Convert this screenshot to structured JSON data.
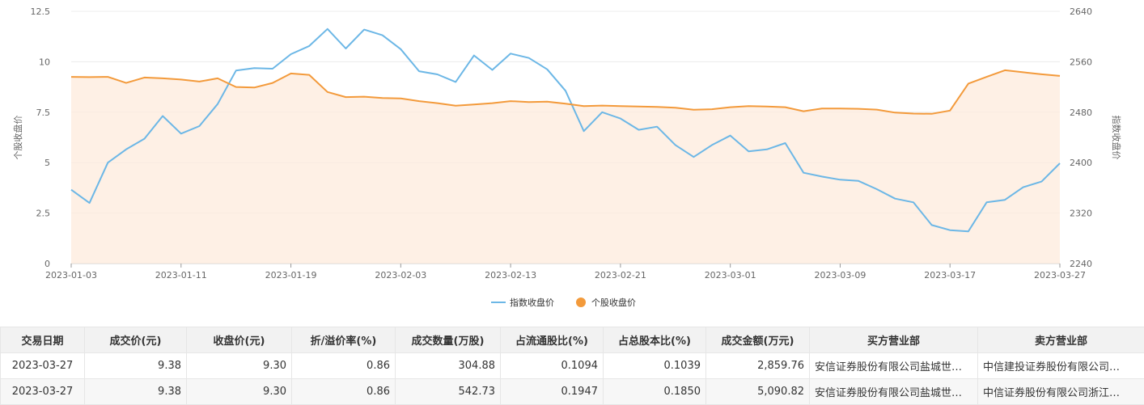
{
  "chart_data": {
    "type": "line",
    "x": [
      "2023-01-03",
      "2023-01-04",
      "2023-01-05",
      "2023-01-06",
      "2023-01-09",
      "2023-01-10",
      "2023-01-11",
      "2023-01-12",
      "2023-01-13",
      "2023-01-16",
      "2023-01-17",
      "2023-01-18",
      "2023-01-19",
      "2023-01-20",
      "2023-01-30",
      "2023-01-31",
      "2023-02-01",
      "2023-02-02",
      "2023-02-03",
      "2023-02-06",
      "2023-02-07",
      "2023-02-08",
      "2023-02-09",
      "2023-02-10",
      "2023-02-13",
      "2023-02-14",
      "2023-02-15",
      "2023-02-16",
      "2023-02-17",
      "2023-02-20",
      "2023-02-21",
      "2023-02-22",
      "2023-02-23",
      "2023-02-24",
      "2023-02-27",
      "2023-02-28",
      "2023-03-01",
      "2023-03-02",
      "2023-03-03",
      "2023-03-06",
      "2023-03-07",
      "2023-03-08",
      "2023-03-09",
      "2023-03-10",
      "2023-03-13",
      "2023-03-14",
      "2023-03-15",
      "2023-03-16",
      "2023-03-17",
      "2023-03-20",
      "2023-03-21",
      "2023-03-22",
      "2023-03-23",
      "2023-03-24",
      "2023-03-27"
    ],
    "x_tick_labels": [
      "2023-01-03",
      "2023-01-11",
      "2023-01-19",
      "2023-02-03",
      "2023-02-13",
      "2023-02-21",
      "2023-03-01",
      "2023-03-09",
      "2023-03-17",
      "2023-03-27"
    ],
    "x_tick_indices": [
      0,
      6,
      12,
      18,
      24,
      30,
      36,
      42,
      48,
      54
    ],
    "y_left": {
      "label": "个股收盘价",
      "min": 0,
      "max": 12.5,
      "ticks": [
        "0",
        "2.5",
        "5",
        "7.5",
        "10",
        "12.5"
      ]
    },
    "y_right": {
      "label": "指数收盘价",
      "min": 2240,
      "max": 2640,
      "ticks": [
        "2240",
        "2320",
        "2400",
        "2480",
        "2560",
        "2640"
      ]
    },
    "series": [
      {
        "name": "指数收盘价",
        "axis": "right",
        "color": "#6cb7e6",
        "values": [
          2357,
          2336,
          2400,
          2421,
          2438,
          2474,
          2446,
          2458,
          2493,
          2546,
          2550,
          2549,
          2572,
          2585,
          2612,
          2581,
          2611,
          2602,
          2580,
          2545,
          2540,
          2528,
          2570,
          2547,
          2573,
          2566,
          2548,
          2514,
          2450,
          2480,
          2470,
          2452,
          2457,
          2428,
          2409,
          2428,
          2443,
          2418,
          2421,
          2431,
          2384,
          2378,
          2373,
          2371,
          2358,
          2343,
          2337,
          2301,
          2293,
          2291,
          2337,
          2341,
          2361,
          2370,
          2399
        ]
      },
      {
        "name": "个股收盘价",
        "axis": "left",
        "color": "#f39a3b",
        "fill": "#fdebdc",
        "values": [
          9.25,
          9.24,
          9.25,
          8.95,
          9.22,
          9.18,
          9.12,
          9.02,
          9.18,
          8.75,
          8.72,
          8.95,
          9.42,
          9.35,
          8.5,
          8.25,
          8.27,
          8.2,
          8.18,
          8.05,
          7.95,
          7.82,
          7.88,
          7.95,
          8.05,
          8.0,
          8.02,
          7.92,
          7.8,
          7.83,
          7.8,
          7.78,
          7.76,
          7.72,
          7.62,
          7.65,
          7.75,
          7.8,
          7.78,
          7.75,
          7.55,
          7.68,
          7.68,
          7.67,
          7.63,
          7.48,
          7.43,
          7.42,
          7.58,
          8.92,
          9.25,
          9.58,
          9.48,
          9.38,
          9.3
        ]
      }
    ],
    "legend": {
      "placement": "bottom-center"
    },
    "grid": true
  },
  "table": {
    "headers": [
      "交易日期",
      "成交价(元)",
      "收盘价(元)",
      "折/溢价率(%)",
      "成交数量(万股)",
      "占流通股比(%)",
      "占总股本比(%)",
      "成交金额(万元)",
      "买方营业部",
      "卖方营业部"
    ],
    "rows": [
      [
        "2023-03-27",
        "9.38",
        "9.30",
        "0.86",
        "304.88",
        "0.1094",
        "0.1039",
        "2,859.76",
        "安信证券股份有限公司盐城世…",
        "中信建投证券股份有限公司…"
      ],
      [
        "2023-03-27",
        "9.38",
        "9.30",
        "0.86",
        "542.73",
        "0.1947",
        "0.1850",
        "5,090.82",
        "安信证券股份有限公司盐城世…",
        "中信证券股份有限公司浙江…"
      ]
    ]
  }
}
